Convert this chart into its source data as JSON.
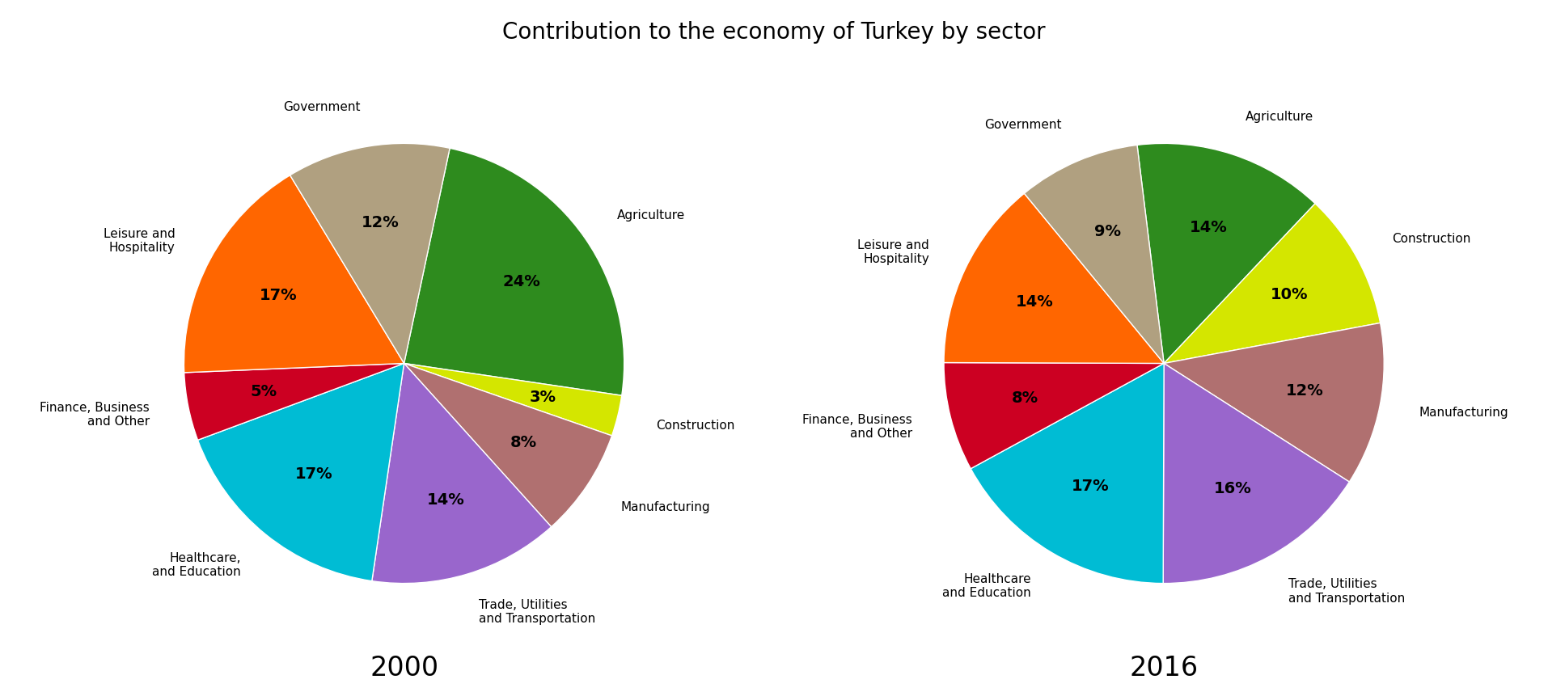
{
  "title": "Contribution to the economy of Turkey by sector",
  "title_fontsize": 20,
  "year_fontsize": 24,
  "pie2000": {
    "year": "2000",
    "labels": [
      "Agriculture",
      "Construction",
      "Manufacturing",
      "Trade, Utilities\nand Transportation",
      "Healthcare,\nand Education",
      "Finance, Business\nand Other",
      "Leisure and\nHospitality",
      "Government"
    ],
    "values": [
      24,
      3,
      8,
      14,
      17,
      5,
      17,
      12
    ],
    "colors": [
      "#2e8b1e",
      "#d4e600",
      "#b07070",
      "#9966cc",
      "#00bcd4",
      "#cc0022",
      "#ff6600",
      "#b0a080"
    ],
    "startangle": 78
  },
  "pie2016": {
    "year": "2016",
    "labels": [
      "Agriculture",
      "Construction",
      "Manufacturing",
      "Trade, Utilities\nand Transportation",
      "Healthcare\nand Education",
      "Finance, Business\nand Other",
      "Leisure and\nHospitality",
      "Government"
    ],
    "values": [
      14,
      10,
      12,
      16,
      17,
      8,
      14,
      9
    ],
    "colors": [
      "#2e8b1e",
      "#d4e600",
      "#b07070",
      "#9966cc",
      "#00bcd4",
      "#cc0022",
      "#ff6600",
      "#b0a080"
    ],
    "startangle": 97
  },
  "label_fontsize": 11,
  "pct_fontsize": 14,
  "background_color": "#ffffff"
}
